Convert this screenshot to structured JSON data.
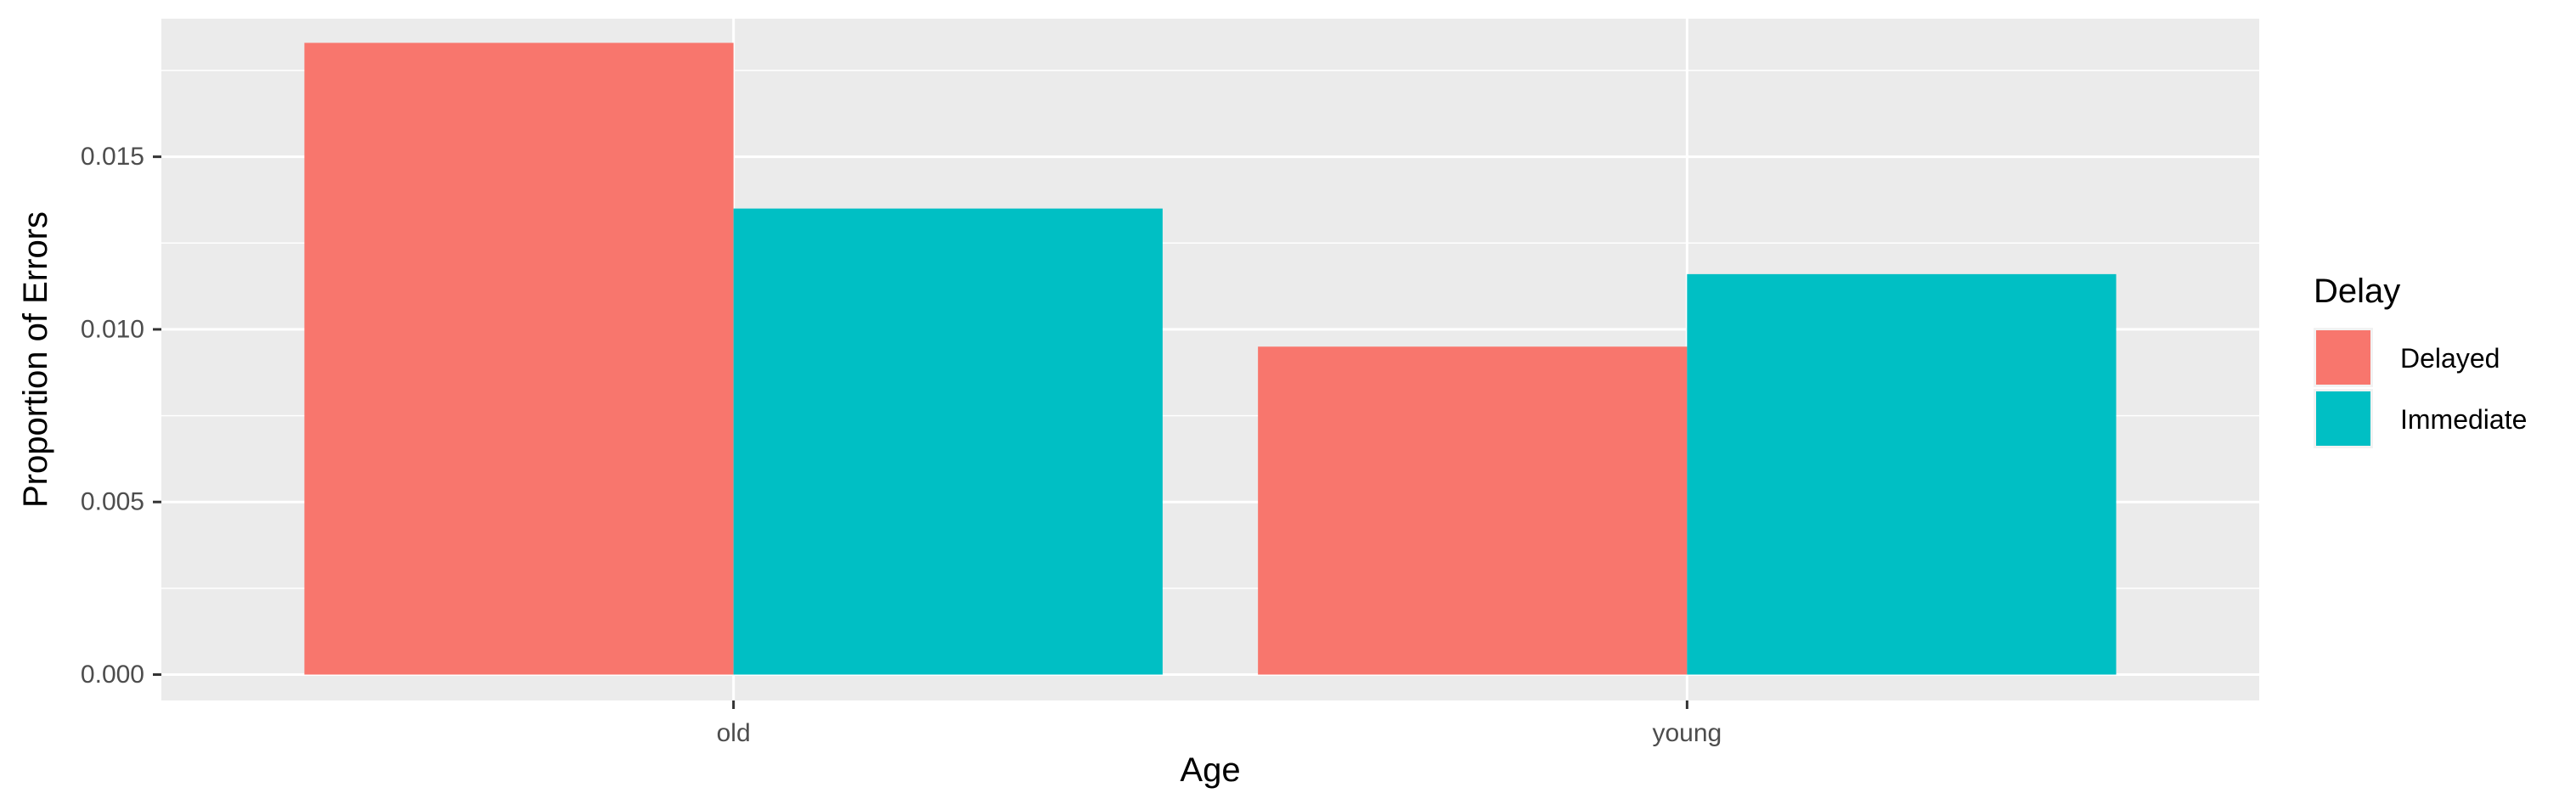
{
  "chart_data": {
    "type": "bar",
    "categories": [
      "old",
      "young"
    ],
    "series": [
      {
        "name": "Delayed",
        "values": [
          0.0183,
          0.0095
        ],
        "color": "#F8766D"
      },
      {
        "name": "Immediate",
        "values": [
          0.0135,
          0.0116
        ],
        "color": "#00BFC4"
      }
    ],
    "title": "",
    "xlabel": "Age",
    "ylabel": "Proportion of Errors",
    "ylim": [
      -0.00075,
      0.019
    ],
    "yticks": [
      0.0,
      0.005,
      0.01,
      0.015
    ],
    "ytick_labels": [
      "0.000",
      "0.005",
      "0.010",
      "0.015"
    ],
    "legend": {
      "title": "Delay",
      "position": "right"
    },
    "grid": true,
    "panel_background": "#EBEBEB",
    "grid_color": "#FFFFFF"
  }
}
